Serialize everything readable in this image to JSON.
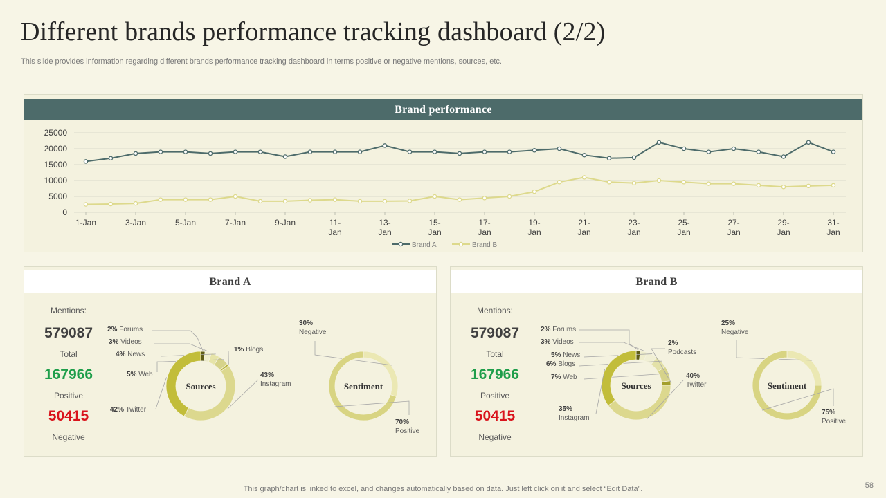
{
  "title": "Different brands performance tracking dashboard (2/2)",
  "subtitle": "This slide provides information regarding different brands performance tracking dashboard in terms positive or negative mentions, sources, etc.",
  "footer": "This graph/chart is linked to excel,  and changes automatically based on data. Just left click on it and select “Edit Data”.",
  "page_number": "58",
  "colors": {
    "brand_a_line": "#4d6b6a",
    "brand_b_line": "#ddd98c",
    "positive": "#1e9e4a",
    "negative": "#d9141c",
    "header_bg": "#4d6b6a"
  },
  "chart_data": [
    {
      "type": "line",
      "title": "Brand performance",
      "categories": [
        "1-Jan",
        "2-Jan",
        "3-Jan",
        "4-Jan",
        "5-Jan",
        "6-Jan",
        "7-Jan",
        "8-Jan",
        "9-Jan",
        "10-Jan",
        "11-Jan",
        "12-Jan",
        "13-Jan",
        "14-Jan",
        "15-Jan",
        "16-Jan",
        "17-Jan",
        "18-Jan",
        "19-Jan",
        "20-Jan",
        "21-Jan",
        "22-Jan",
        "23-Jan",
        "24-Jan",
        "25-Jan",
        "26-Jan",
        "27-Jan",
        "28-Jan",
        "29-Jan",
        "30-Jan",
        "31-Jan"
      ],
      "tick_labels": [
        [
          "1-Jan"
        ],
        [
          "3-Jan"
        ],
        [
          "5-Jan"
        ],
        [
          "7-Jan"
        ],
        [
          "9-Jan"
        ],
        [
          "11-",
          "Jan"
        ],
        [
          "13-",
          "Jan"
        ],
        [
          "15-",
          "Jan"
        ],
        [
          "17-",
          "Jan"
        ],
        [
          "19-",
          "Jan"
        ],
        [
          "21-",
          "Jan"
        ],
        [
          "23-",
          "Jan"
        ],
        [
          "25-",
          "Jan"
        ],
        [
          "27-",
          "Jan"
        ],
        [
          "29-",
          "Jan"
        ],
        [
          "31-",
          "Jan"
        ]
      ],
      "yticks": [
        "25000",
        "20000",
        "15000",
        "10000",
        "5000",
        "0"
      ],
      "ylim": [
        0,
        25000
      ],
      "series": [
        {
          "name": "Brand A",
          "values": [
            16000,
            17000,
            18500,
            19000,
            19000,
            18500,
            19000,
            19000,
            17500,
            19000,
            19000,
            19000,
            21000,
            19000,
            19000,
            18500,
            19000,
            19000,
            19500,
            20000,
            18000,
            17000,
            17200,
            22000,
            20000,
            19000,
            20000,
            19000,
            17500,
            22000,
            19000
          ]
        },
        {
          "name": "Brand B",
          "values": [
            2500,
            2600,
            2800,
            4000,
            4000,
            4000,
            5000,
            3500,
            3500,
            3800,
            4000,
            3500,
            3500,
            3600,
            5000,
            4000,
            4500,
            5000,
            6500,
            9500,
            11000,
            9500,
            9200,
            10000,
            9500,
            9000,
            9000,
            8500,
            8000,
            8300,
            8500
          ]
        }
      ]
    },
    {
      "type": "pie",
      "title": "Sources",
      "brand": "Brand A",
      "slices": [
        {
          "label": "Forums",
          "pct": "2%",
          "value": 2,
          "color": "#5e5c16"
        },
        {
          "label": "Videos",
          "pct": "3%",
          "value": 3,
          "color": "#efeecd"
        },
        {
          "label": "News",
          "pct": "4%",
          "value": 4,
          "color": "#e6e4a8"
        },
        {
          "label": "Web",
          "pct": "5%",
          "value": 5,
          "color": "#d6d38a"
        },
        {
          "label": "Blogs",
          "pct": "1%",
          "value": 1,
          "color": "#b8b43a"
        },
        {
          "label": "Instagram",
          "pct": "43%",
          "value": 43,
          "color": "#dcd88e"
        },
        {
          "label": "Twitter",
          "pct": "42%",
          "value": 42,
          "color": "#c2bd3a"
        }
      ]
    },
    {
      "type": "pie",
      "title": "Sentiment",
      "brand": "Brand A",
      "slices": [
        {
          "label": "Negative",
          "pct": "30%",
          "value": 30,
          "color": "#ebe8b3"
        },
        {
          "label": "Positive",
          "pct": "70%",
          "value": 70,
          "color": "#d8d482"
        }
      ]
    },
    {
      "type": "pie",
      "title": "Sources",
      "brand": "Brand B",
      "slices": [
        {
          "label": "Forums",
          "pct": "2%",
          "value": 2,
          "color": "#5e5c16"
        },
        {
          "label": "Videos",
          "pct": "3%",
          "value": 3,
          "color": "#efeecd"
        },
        {
          "label": "News",
          "pct": "5%",
          "value": 5,
          "color": "#f0efd4"
        },
        {
          "label": "Blogs",
          "pct": "6%",
          "value": 6,
          "color": "#e3e1a8"
        },
        {
          "label": "Web",
          "pct": "7%",
          "value": 7,
          "color": "#d6d38a"
        },
        {
          "label": "Podcasts",
          "pct": "2%",
          "value": 2,
          "color": "#a39f2c"
        },
        {
          "label": "Twitter",
          "pct": "40%",
          "value": 40,
          "color": "#dcd88e"
        },
        {
          "label": "Instagram",
          "pct": "35%",
          "value": 35,
          "color": "#c2bd3a"
        }
      ]
    },
    {
      "type": "pie",
      "title": "Sentiment",
      "brand": "Brand B",
      "slices": [
        {
          "label": "Negative",
          "pct": "25%",
          "value": 25,
          "color": "#ebe8b3"
        },
        {
          "label": "Positive",
          "pct": "75%",
          "value": 75,
          "color": "#d8d482"
        }
      ]
    }
  ],
  "brand_a": {
    "header": "Brand A",
    "mentions_label": "Mentions:",
    "total": "579087",
    "total_label": "Total",
    "positive": "167966",
    "positive_label": "Positive",
    "negative": "50415",
    "negative_label": "Negative"
  },
  "brand_b": {
    "header": "Brand B",
    "mentions_label": "Mentions:",
    "total": "579087",
    "total_label": "Total",
    "positive": "167966",
    "positive_label": "Positive",
    "negative": "50415",
    "negative_label": "Negative"
  }
}
